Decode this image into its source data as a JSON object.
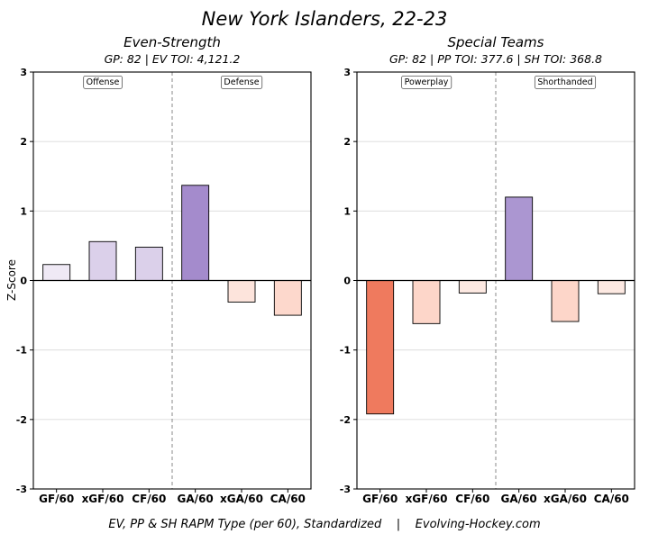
{
  "page": {
    "title": "New York Islanders, 22-23",
    "footer": "EV, PP & SH RAPM Type (per 60), Standardized    |    Evolving-Hockey.com"
  },
  "chart_data": [
    {
      "type": "bar",
      "title": "Even-Strength",
      "subtitle": "GP: 82 | EV TOI: 4,121.2",
      "ylabel": "Z-Score",
      "ylim": [
        -3,
        3
      ],
      "yticks": [
        -3,
        -2,
        -1,
        0,
        1,
        2,
        3
      ],
      "grid": true,
      "categories": [
        "GF/60",
        "xGF/60",
        "CF/60",
        "GA/60",
        "xGA/60",
        "CA/60"
      ],
      "values": [
        0.23,
        0.56,
        0.48,
        1.37,
        -0.31,
        -0.5
      ],
      "colors": [
        "#efe9f5",
        "#dbd0ea",
        "#dbd0ea",
        "#a48bcc",
        "#fde4dc",
        "#fdd8cc"
      ],
      "sections": [
        {
          "label": "Offense",
          "from": 0,
          "to": 2
        },
        {
          "label": "Defense",
          "from": 3,
          "to": 5
        }
      ]
    },
    {
      "type": "bar",
      "title": "Special Teams",
      "subtitle": "GP: 82 | PP TOI: 377.6 | SH TOI: 368.8",
      "ylabel": "",
      "ylim": [
        -3,
        3
      ],
      "yticks": [
        -3,
        -2,
        -1,
        0,
        1,
        2,
        3
      ],
      "grid": true,
      "categories": [
        "GF/60",
        "xGF/60",
        "CF/60",
        "GA/60",
        "xGA/60",
        "CA/60"
      ],
      "values": [
        -1.92,
        -0.62,
        -0.18,
        1.2,
        -0.59,
        -0.19
      ],
      "colors": [
        "#ef7a5e",
        "#fdd6c9",
        "#fde9e2",
        "#ab96d1",
        "#fdd6c9",
        "#fde9e2"
      ],
      "sections": [
        {
          "label": "Powerplay",
          "from": 0,
          "to": 2
        },
        {
          "label": "Shorthanded",
          "from": 3,
          "to": 5
        }
      ]
    }
  ]
}
